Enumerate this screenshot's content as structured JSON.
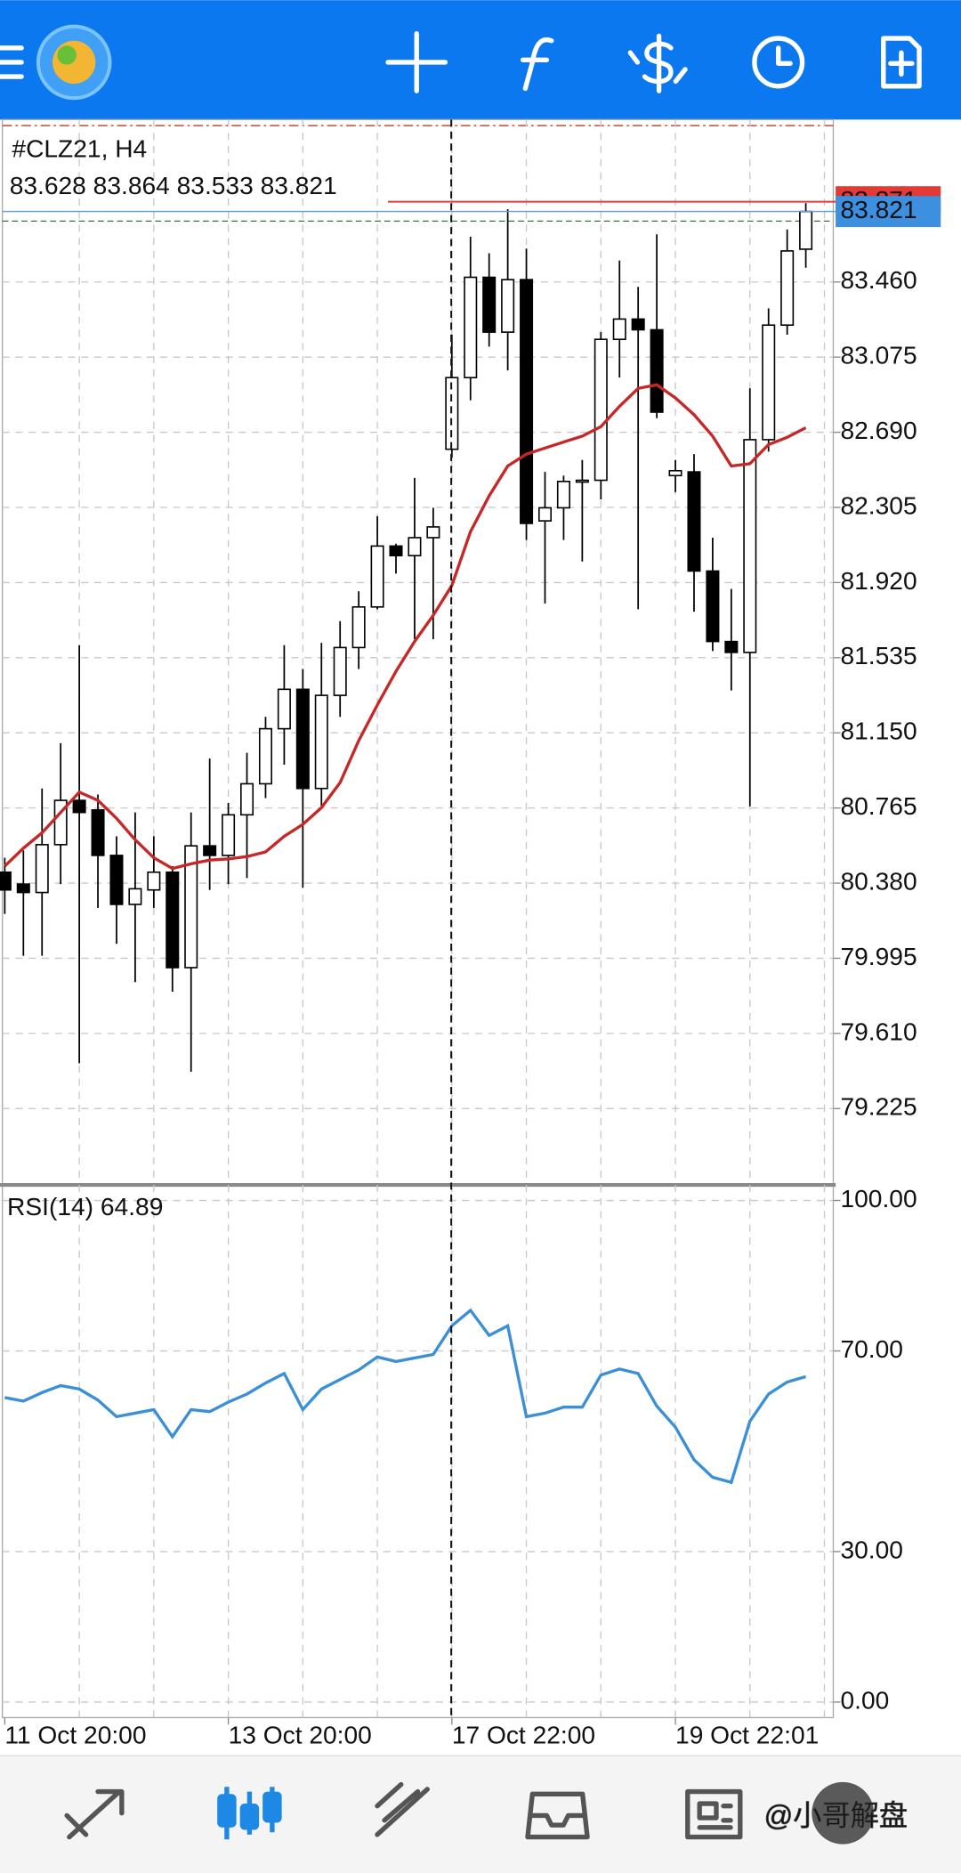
{
  "chart_data": [
    {
      "type": "candlestick",
      "title": "#CLZ21, H4",
      "categories": [
        "11 Oct 20:00",
        null,
        null,
        null,
        null,
        null,
        null,
        null,
        null,
        null,
        null,
        null,
        "13 Oct 20:00",
        null,
        null,
        null,
        null,
        null,
        null,
        null,
        null,
        null,
        null,
        null,
        "17 Oct 22:00",
        null,
        null,
        null,
        null,
        null,
        null,
        null,
        null,
        null,
        null,
        null,
        "19 Oct 22:01",
        null,
        null,
        null,
        null,
        null,
        null,
        null
      ],
      "candles": {
        "open": [
          80.436,
          80.375,
          80.332,
          80.577,
          80.804,
          80.755,
          80.522,
          80.271,
          80.345,
          80.436,
          79.947,
          80.571,
          80.522,
          80.73,
          80.889,
          81.171,
          81.373,
          80.865,
          81.342,
          81.587,
          81.795,
          82.107,
          82.058,
          82.15,
          82.603,
          82.97,
          83.484,
          83.203,
          83.472,
          82.236,
          82.303,
          82.438,
          82.444,
          83.166,
          83.27,
          83.215,
          82.468,
          82.487,
          81.979,
          81.618,
          81.562,
          82.652,
          83.239,
          83.628
        ],
        "high": [
          80.51,
          80.547,
          80.865,
          81.097,
          81.599,
          80.834,
          80.62,
          80.742,
          80.62,
          80.467,
          80.742,
          81.018,
          80.791,
          81.048,
          81.232,
          81.599,
          81.477,
          81.611,
          81.722,
          81.875,
          82.26,
          82.119,
          82.456,
          82.303,
          83.19,
          83.692,
          83.607,
          83.833,
          83.631,
          82.487,
          82.468,
          82.548,
          83.203,
          83.57,
          83.435,
          83.704,
          82.548,
          82.578,
          82.15,
          81.887,
          82.915,
          83.325,
          83.729,
          83.864
        ],
        "low": [
          80.222,
          80.008,
          80.008,
          80.375,
          79.457,
          80.253,
          80.069,
          79.873,
          80.253,
          79.824,
          79.414,
          80.345,
          80.375,
          80.406,
          80.816,
          80.987,
          80.357,
          80.773,
          81.232,
          81.477,
          81.783,
          81.966,
          81.63,
          81.63,
          82.56,
          82.854,
          83.129,
          83.007,
          82.138,
          81.813,
          82.138,
          82.028,
          82.346,
          82.97,
          81.783,
          82.762,
          82.383,
          81.771,
          81.569,
          81.367,
          80.773,
          82.591,
          83.19,
          83.533
        ],
        "close": [
          80.345,
          80.332,
          80.577,
          80.804,
          80.742,
          80.522,
          80.271,
          80.351,
          80.436,
          79.947,
          80.571,
          80.522,
          80.73,
          80.889,
          81.171,
          81.373,
          80.865,
          81.342,
          81.587,
          81.795,
          82.107,
          82.058,
          82.15,
          82.205,
          82.97,
          83.484,
          83.203,
          83.472,
          82.223,
          82.303,
          82.438,
          82.444,
          83.166,
          83.27,
          83.215,
          82.793,
          82.493,
          81.979,
          81.618,
          81.562,
          82.652,
          83.239,
          83.619,
          83.821
        ]
      },
      "ma": {
        "color": "#c62828",
        "values": [
          80.467,
          80.559,
          80.638,
          80.742,
          80.846,
          80.804,
          80.712,
          80.602,
          80.51,
          80.455,
          80.479,
          80.498,
          80.504,
          80.516,
          80.54,
          80.62,
          80.681,
          80.767,
          80.895,
          81.11,
          81.293,
          81.465,
          81.618,
          81.752,
          81.905,
          82.181,
          82.364,
          82.517,
          82.578,
          82.609,
          82.64,
          82.67,
          82.719,
          82.823,
          82.915,
          82.933,
          82.866,
          82.78,
          82.67,
          82.517,
          82.529,
          82.627,
          82.664,
          82.713
        ]
      },
      "ask_price": 83.871,
      "ylim": [
        78.846,
        84.292
      ],
      "yticks": [
        {
          "value": 83.46,
          "label": "83.460"
        },
        83.075,
        {
          "value": 82.69,
          "label": "82.690"
        },
        82.305,
        {
          "value": 81.92,
          "label": "81.920"
        },
        81.535,
        {
          "value": 81.15,
          "label": "81.150"
        },
        80.765,
        {
          "value": 80.38,
          "label": "80.380"
        },
        79.995,
        {
          "value": 79.61,
          "label": "79.610"
        },
        79.225
      ],
      "grid": true
    },
    {
      "type": "line",
      "title": "RSI(14)",
      "series": [
        {
          "color": "#3a8fd6",
          "values": [
            60.7,
            60.0,
            61.7,
            63.1,
            62.4,
            60.2,
            56.9,
            57.6,
            58.3,
            52.9,
            58.3,
            57.9,
            59.8,
            61.4,
            63.6,
            65.5,
            58.3,
            62.4,
            64.3,
            66.2,
            68.8,
            67.9,
            68.6,
            69.3,
            75.0,
            78.1,
            73.1,
            75.0,
            56.9,
            57.6,
            58.8,
            58.8,
            65.2,
            66.4,
            65.5,
            59.0,
            54.8,
            48.3,
            44.8,
            43.8,
            56.0,
            61.4,
            63.8,
            64.89
          ]
        }
      ],
      "ylim": [
        -3.1,
        103.1
      ],
      "yticks": [
        {
          "value": 100,
          "label": "100.00"
        },
        {
          "value": 70,
          "label": "70.00"
        },
        {
          "value": 30,
          "label": "30.00"
        },
        {
          "value": 0,
          "label": "0.00"
        }
      ],
      "grid": true
    }
  ],
  "watermark": "@小哥解盘"
}
